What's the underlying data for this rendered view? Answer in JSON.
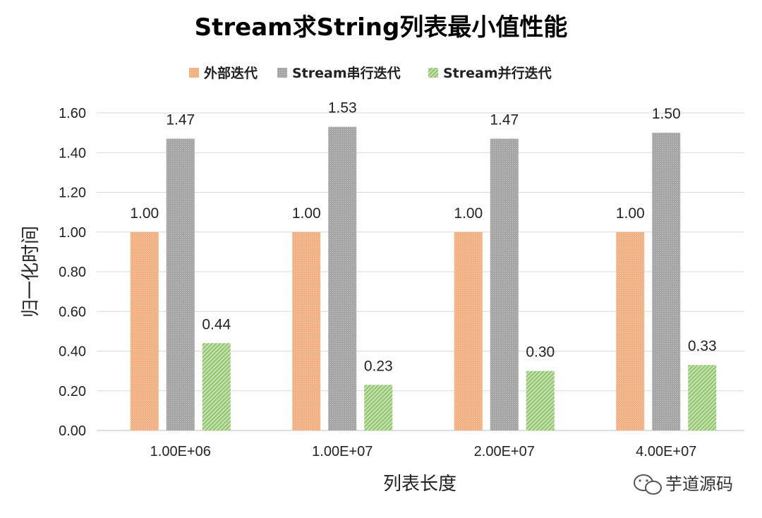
{
  "chart_data": {
    "type": "bar",
    "title": "Stream求String列表最小值性能",
    "xlabel": "列表长度",
    "ylabel": "归一化时间",
    "categories": [
      "1.00E+06",
      "1.00E+07",
      "2.00E+07",
      "4.00E+07"
    ],
    "series": [
      {
        "name": "外部迭代",
        "values": [
          1.0,
          1.0,
          1.0,
          1.0
        ],
        "labels": [
          "1.00",
          "1.00",
          "1.00",
          "1.00"
        ],
        "color": "#f4b183"
      },
      {
        "name": "Stream串行迭代",
        "values": [
          1.47,
          1.53,
          1.47,
          1.5
        ],
        "labels": [
          "1.47",
          "1.53",
          "1.47",
          "1.50"
        ],
        "color": "#a5a5a5"
      },
      {
        "name": "Stream并行迭代",
        "values": [
          0.44,
          0.23,
          0.3,
          0.33
        ],
        "labels": [
          "0.44",
          "0.23",
          "0.30",
          "0.33"
        ],
        "color": "#a9d18e"
      }
    ],
    "ylim": [
      0,
      1.6
    ],
    "yticks": [
      "0.00",
      "0.20",
      "0.40",
      "0.60",
      "0.80",
      "1.00",
      "1.20",
      "1.40",
      "1.60"
    ],
    "ytick_values": [
      0,
      0.2,
      0.4,
      0.6,
      0.8,
      1.0,
      1.2,
      1.4,
      1.6
    ],
    "grid": true,
    "legend_position": "top"
  },
  "watermark": {
    "text": "芋道源码",
    "icon": "wechat-icon"
  }
}
